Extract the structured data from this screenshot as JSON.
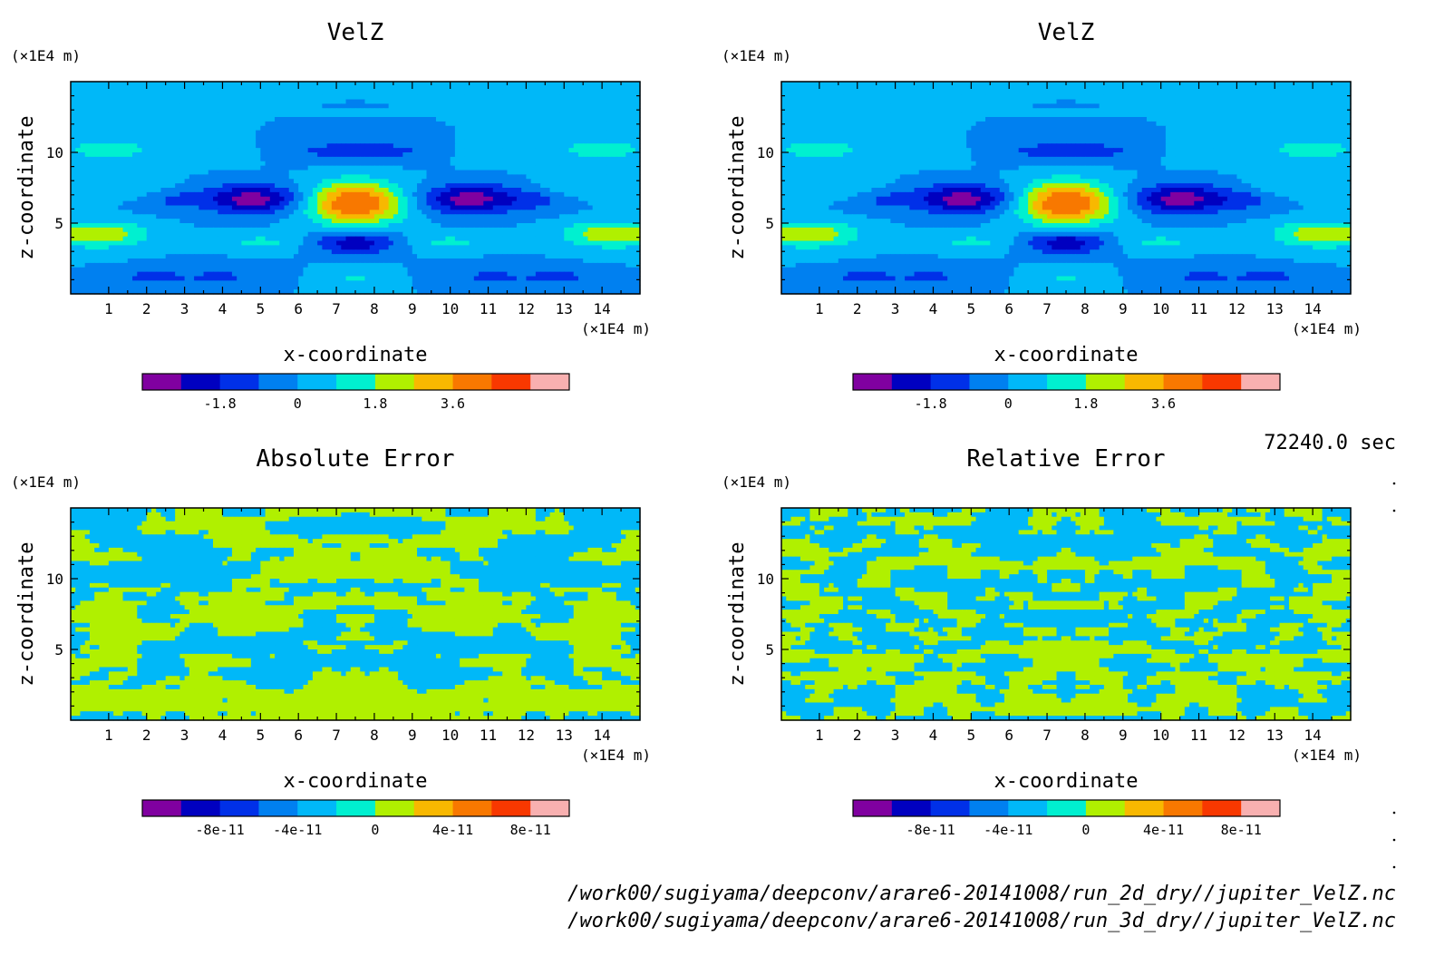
{
  "time_label": "72240.0 sec",
  "files": [
    "/work00/sugiyama/deepconv/arare6-20141008/run_2d_dry//jupiter_VelZ.nc",
    "/work00/sugiyama/deepconv/arare6-20141008/run_3d_dry//jupiter_VelZ.nc"
  ],
  "colors": [
    "#8000a0",
    "#0000c0",
    "#0030e8",
    "#0080f0",
    "#00b8f8",
    "#00f0d0",
    "#b0f000",
    "#f8b800",
    "#f87800",
    "#f83800",
    "#f8b0b0"
  ],
  "chart_data": [
    {
      "type": "heatmap",
      "title": "VelZ",
      "xlabel": "x-coordinate",
      "ylabel": "z-coordinate",
      "x_unit": "(×1E4 m)",
      "y_unit": "(×1E4 m)",
      "xlim": [
        0,
        15
      ],
      "ylim": [
        0,
        15
      ],
      "x_ticks": [
        "1",
        "2",
        "3",
        "4",
        "5",
        "6",
        "7",
        "8",
        "9",
        "10",
        "11",
        "12",
        "13",
        "14"
      ],
      "y_ticks": [
        "5",
        "10"
      ],
      "colorbar_labels": [
        "-1.8",
        "0",
        "1.8",
        "3.6"
      ],
      "colorbar_levels": [
        -2.7,
        -1.8,
        -0.9,
        0,
        0.9,
        1.8,
        2.7,
        3.6
      ],
      "field_range": [
        -3.3,
        4.5
      ]
    },
    {
      "type": "heatmap",
      "title": "VelZ",
      "xlabel": "x-coordinate",
      "ylabel": "z-coordinate",
      "x_unit": "(×1E4 m)",
      "y_unit": "(×1E4 m)",
      "xlim": [
        0,
        15
      ],
      "ylim": [
        0,
        15
      ],
      "x_ticks": [
        "1",
        "2",
        "3",
        "4",
        "5",
        "6",
        "7",
        "8",
        "9",
        "10",
        "11",
        "12",
        "13",
        "14"
      ],
      "y_ticks": [
        "5",
        "10"
      ],
      "colorbar_labels": [
        "-1.8",
        "0",
        "1.8",
        "3.6"
      ],
      "colorbar_levels": [
        -2.7,
        -1.8,
        -0.9,
        0,
        0.9,
        1.8,
        2.7,
        3.6
      ],
      "field_range": [
        -3.3,
        4.5
      ]
    },
    {
      "type": "heatmap",
      "title": "Absolute Error",
      "xlabel": "x-coordinate",
      "ylabel": "z-coordinate",
      "x_unit": "(×1E4 m)",
      "y_unit": "(×1E4 m)",
      "xlim": [
        0,
        15
      ],
      "ylim": [
        0,
        15
      ],
      "x_ticks": [
        "1",
        "2",
        "3",
        "4",
        "5",
        "6",
        "7",
        "8",
        "9",
        "10",
        "11",
        "12",
        "13",
        "14"
      ],
      "y_ticks": [
        "5",
        "10"
      ],
      "colorbar_labels": [
        "-8e-11",
        "-4e-11",
        "0",
        "4e-11",
        "8e-11"
      ],
      "colorbar_levels": [
        -1e-10,
        -8e-11,
        -6e-11,
        -4e-11,
        -2e-11,
        0,
        2e-11,
        4e-11,
        6e-11,
        8e-11,
        1e-10
      ],
      "field_range": [
        -2e-11,
        2e-11
      ]
    },
    {
      "type": "heatmap",
      "title": "Relative Error",
      "xlabel": "x-coordinate",
      "ylabel": "z-coordinate",
      "x_unit": "(×1E4 m)",
      "y_unit": "(×1E4 m)",
      "xlim": [
        0,
        15
      ],
      "ylim": [
        0,
        15
      ],
      "x_ticks": [
        "1",
        "2",
        "3",
        "4",
        "5",
        "6",
        "7",
        "8",
        "9",
        "10",
        "11",
        "12",
        "13",
        "14"
      ],
      "y_ticks": [
        "5",
        "10"
      ],
      "colorbar_labels": [
        "-8e-11",
        "-4e-11",
        "0",
        "4e-11",
        "8e-11"
      ],
      "colorbar_levels": [
        -1e-10,
        -8e-11,
        -6e-11,
        -4e-11,
        -2e-11,
        0,
        2e-11,
        4e-11,
        6e-11,
        8e-11,
        1e-10
      ],
      "field_range": [
        -2e-11,
        2e-11
      ]
    }
  ]
}
